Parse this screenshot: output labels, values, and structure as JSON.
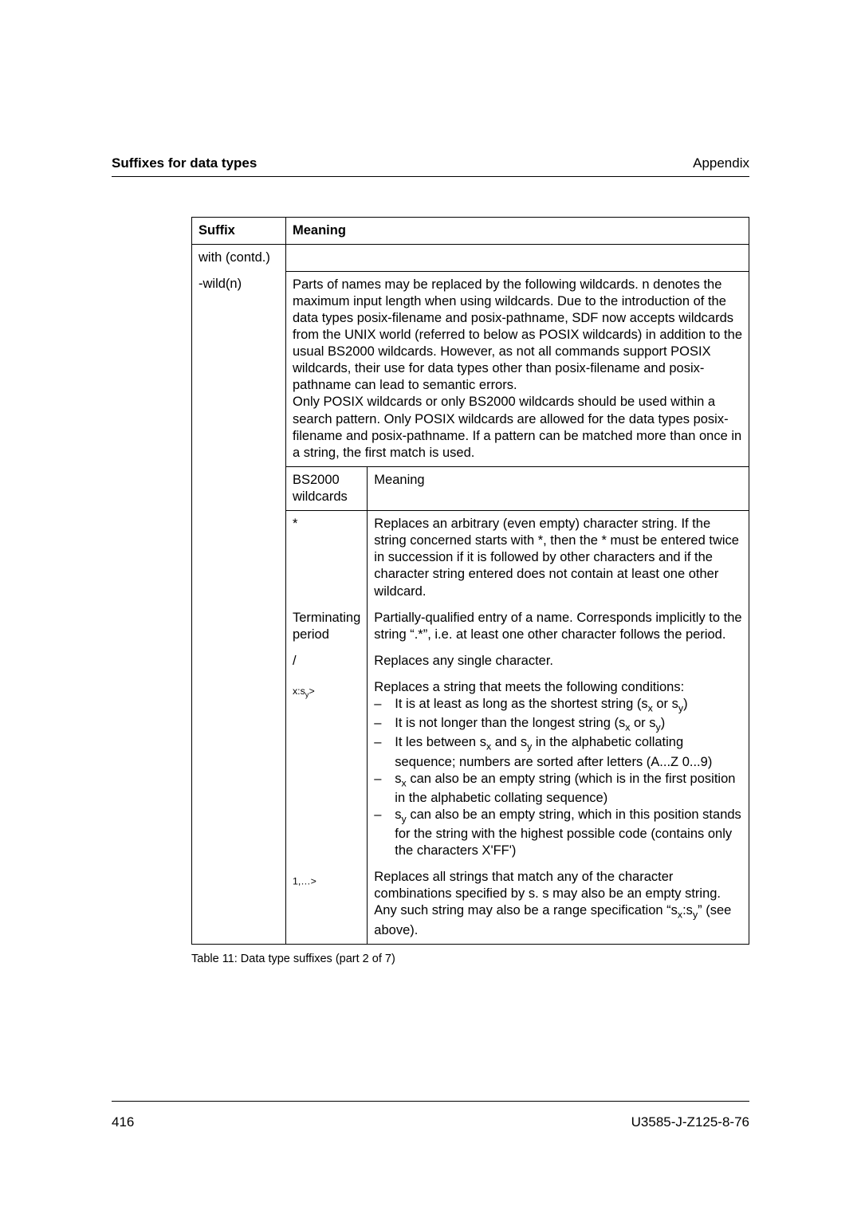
{
  "header": {
    "left": "Suffixes for data types",
    "right": "Appendix"
  },
  "table": {
    "head": {
      "suffix": "Suffix",
      "meaning": "Meaning"
    },
    "with_contd": "with (contd.)",
    "wildn": "-wild(n)",
    "wildn_para": "Parts of names may be replaced by the following wildcards. n denotes the maximum input length when using wildcards. Due to the introduction of the data types posix-filename and posix-pathname, SDF now accepts wildcards from the UNIX world (referred to below as POSIX wildcards) in addition to the usual BS2000 wildcards. However, as not all commands support POSIX wildcards, their use for data types other than posix-filename and posix-pathname can lead to semantic errors.",
    "wildn_para2": "Only POSIX wildcards or only BS2000 wildcards should be used within a search pattern. Only POSIX wildcards are allowed for the data types posix-filename and posix-pathname. If a pattern can be matched more than once in a string, the first match is used.",
    "bs_header": {
      "bs": "BS2000 wildcards",
      "mean": "Meaning"
    },
    "rows": {
      "star": {
        "sym": "*",
        "txt": "Replaces an arbitrary (even empty) character string. If the string concerned starts with *, then the * must be entered twice in succession if it is followed by other characters and if the character string entered does not contain at least one other wildcard."
      },
      "term": {
        "sym": "Terminating period",
        "txt": "Partially-qualified entry of a name. Corresponds implicitly to the string “.*”, i.e. at least one other character follows the period."
      },
      "slash": {
        "sym": "/",
        "txt": "Replaces any single character."
      },
      "range": {
        "sym_html": "<s<span class=\"sub\">x</span>:s<span class=\"sub\">y</span>>",
        "intro": "Replaces a string that meets the following conditions:",
        "items": [
          "It is at least as long as the shortest string (s<span class=\"sub\">x</span> or s<span class=\"sub\">y</span>)",
          "It is not longer than the longest string (s<span class=\"sub\">x</span> or s<span class=\"sub\">y</span>)",
          "It les between s<span class=\"sub\">x</span> and s<span class=\"sub\">y</span> in the alphabetic collating sequence; numbers are sorted after letters (A...Z 0...9)",
          "s<span class=\"sub\">x</span> can also be an empty string (which is in the first position in the alphabetic collating sequence)",
          "s<span class=\"sub\">y</span> can also be an empty string, which in this position stands for the string with the highest possible code (contains only the characters X'FF')"
        ]
      },
      "list": {
        "sym_html": "<s<span class=\"sub\">1</span>,…>",
        "txt_html": "Replaces all strings that match any of the character combinations specified by s. s may also be an empty string. Any such string may also be a range specification “s<span class=\"sub\">x</span>:s<span class=\"sub\">y</span>” (see above)."
      }
    }
  },
  "caption": "Table 11: Data type suffixes (part 2 of 7)",
  "footer": {
    "pageno": "416",
    "docid": "U3585-J-Z125-8-76"
  }
}
